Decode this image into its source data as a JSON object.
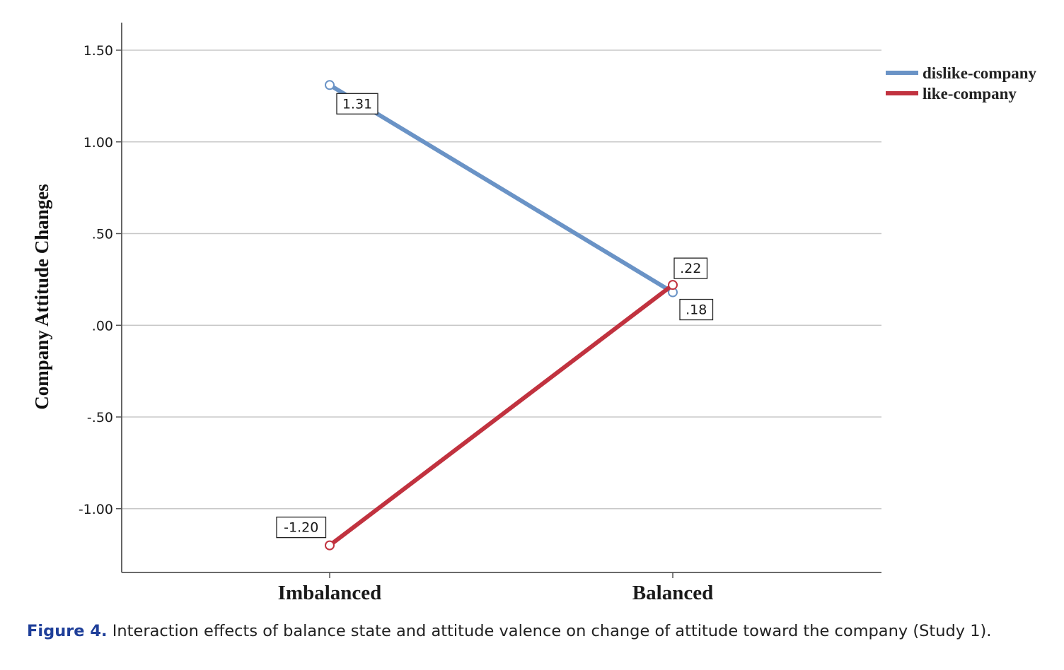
{
  "chart_data": {
    "type": "line",
    "title": "",
    "xlabel": "",
    "ylabel": "Company Attitude Changes",
    "categories": [
      "Imbalanced",
      "Balanced"
    ],
    "ylim": [
      -1.35,
      1.65
    ],
    "yticks": [
      1.5,
      1.0,
      0.5,
      0.0,
      -0.5,
      -1.0
    ],
    "ytick_labels": [
      "1.50",
      "1.00",
      ".50",
      ".00",
      "-.50",
      "-1.00"
    ],
    "grid": true,
    "legend_position": "top-right (outside plot)",
    "series": [
      {
        "name": "dislike-company",
        "color": "#6a93c6",
        "values": [
          1.31,
          0.18
        ],
        "labels": [
          "1.31",
          ".18"
        ]
      },
      {
        "name": "like-company",
        "color": "#c1323f",
        "values": [
          -1.2,
          0.22
        ],
        "labels": [
          "-1.20",
          ".22"
        ]
      }
    ]
  },
  "caption": {
    "figure_label": "Figure 4.",
    "text": " Interaction effects of balance state and attitude valence on change of attitude toward the company (Study 1)."
  }
}
